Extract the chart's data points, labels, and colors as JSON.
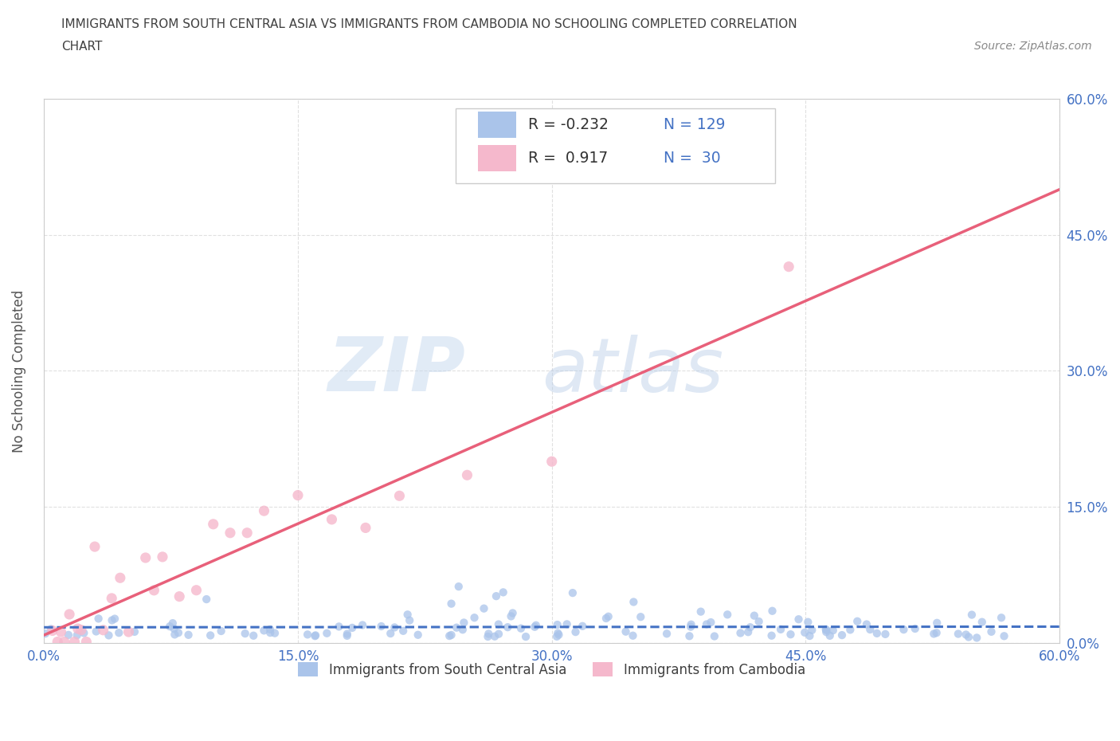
{
  "title_line1": "IMMIGRANTS FROM SOUTH CENTRAL ASIA VS IMMIGRANTS FROM CAMBODIA NO SCHOOLING COMPLETED CORRELATION",
  "title_line2": "CHART",
  "source_text": "Source: ZipAtlas.com",
  "ylabel": "No Schooling Completed",
  "series1_label": "Immigrants from South Central Asia",
  "series2_label": "Immigrants from Cambodia",
  "series1_R": -0.232,
  "series1_N": 129,
  "series2_R": 0.917,
  "series2_N": 30,
  "series1_color": "#aac4ea",
  "series2_color": "#f5b8cc",
  "series1_line_color": "#4472c4",
  "series2_line_color": "#e8607a",
  "xlim": [
    0.0,
    0.6
  ],
  "ylim": [
    0.0,
    0.6
  ],
  "xticks": [
    0.0,
    0.15,
    0.3,
    0.45,
    0.6
  ],
  "yticks": [
    0.0,
    0.15,
    0.3,
    0.45,
    0.6
  ],
  "watermark_zip": "ZIP",
  "watermark_atlas": "atlas",
  "background_color": "#ffffff",
  "grid_color": "#cccccc",
  "title_color": "#404040",
  "axis_label_color": "#555555",
  "tick_label_color": "#4472c4",
  "source_color": "#888888"
}
